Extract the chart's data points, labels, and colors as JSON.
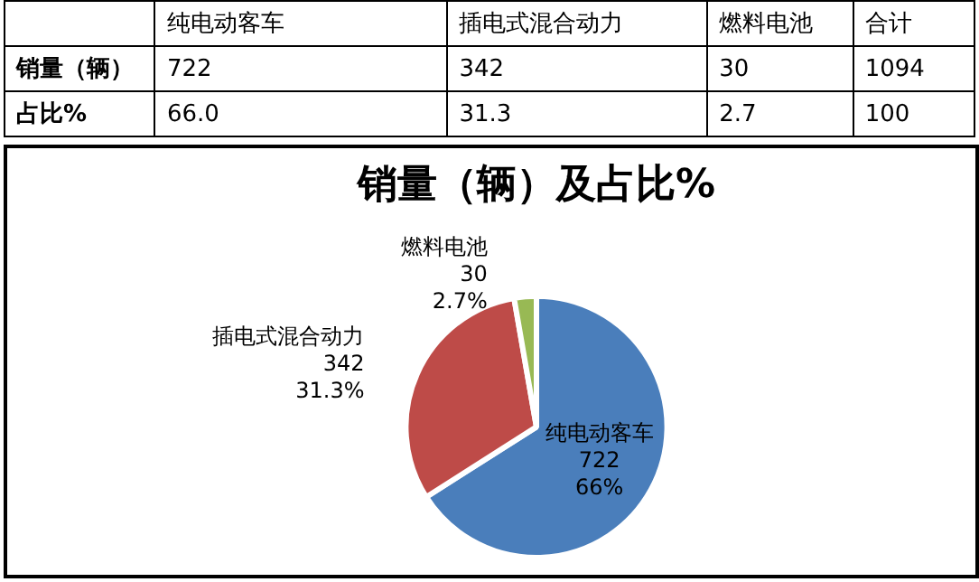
{
  "chart_data": {
    "type": "pie",
    "title": "销量（辆）及占比%",
    "categories": [
      "纯电动客车",
      "插电式混合动力",
      "燃料电池"
    ],
    "values": [
      722,
      342,
      30
    ],
    "colors": [
      "#4a7ebb",
      "#be4b48",
      "#98b954"
    ],
    "annotations": [
      "销量（辆）",
      "占比%",
      "66.0",
      "31.3",
      "2.7",
      "合计",
      "1094",
      "100",
      "66%",
      "31.3%",
      "2.7%",
      "722",
      "342",
      "30"
    ],
    "data_labels": true,
    "legend": false
  }
}
